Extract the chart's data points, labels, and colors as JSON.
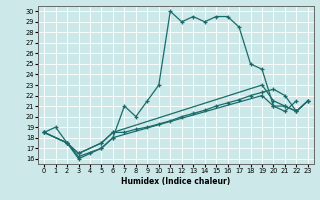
{
  "xlabel": "Humidex (Indice chaleur)",
  "xlim": [
    -0.5,
    23.5
  ],
  "ylim": [
    15.5,
    30.5
  ],
  "xticks": [
    0,
    1,
    2,
    3,
    4,
    5,
    6,
    7,
    8,
    9,
    10,
    11,
    12,
    13,
    14,
    15,
    16,
    17,
    18,
    19,
    20,
    21,
    22,
    23
  ],
  "yticks": [
    16,
    17,
    18,
    19,
    20,
    21,
    22,
    23,
    24,
    25,
    26,
    27,
    28,
    29,
    30
  ],
  "bg_color": "#cce8e8",
  "line_color": "#1a6b6b",
  "grid_color": "#ffffff",
  "line1_x": [
    0,
    1,
    2,
    3,
    4,
    5,
    6,
    7,
    8,
    9,
    10,
    11,
    12,
    13,
    14,
    15,
    16,
    17,
    18,
    19,
    20,
    21,
    22
  ],
  "line1_y": [
    18.5,
    19.0,
    17.5,
    16.0,
    16.5,
    17.0,
    18.0,
    21.0,
    20.0,
    21.5,
    23.0,
    30.0,
    29.0,
    29.5,
    29.0,
    29.5,
    29.5,
    28.5,
    25.0,
    24.5,
    21.0,
    20.5,
    21.5
  ],
  "line2_x": [
    0,
    2,
    3,
    5,
    6,
    19,
    20,
    21,
    22,
    23
  ],
  "line2_y": [
    18.5,
    17.5,
    16.2,
    17.0,
    18.0,
    22.0,
    21.0,
    21.0,
    20.5,
    21.5
  ],
  "line3_x": [
    0,
    2,
    3,
    5,
    6,
    19,
    20,
    21,
    22,
    23
  ],
  "line3_y": [
    18.5,
    17.5,
    16.5,
    17.5,
    18.5,
    23.0,
    21.5,
    21.0,
    20.5,
    21.5
  ],
  "line4_x": [
    0,
    2,
    3,
    5,
    6,
    7,
    8,
    9,
    10,
    11,
    12,
    13,
    14,
    15,
    16,
    17,
    18,
    19,
    20,
    21,
    22,
    23
  ],
  "line4_y": [
    18.5,
    17.5,
    16.5,
    17.5,
    18.5,
    18.5,
    18.8,
    19.0,
    19.3,
    19.6,
    20.0,
    20.3,
    20.6,
    21.0,
    21.3,
    21.6,
    22.0,
    22.3,
    22.6,
    22.0,
    20.5,
    21.5
  ]
}
